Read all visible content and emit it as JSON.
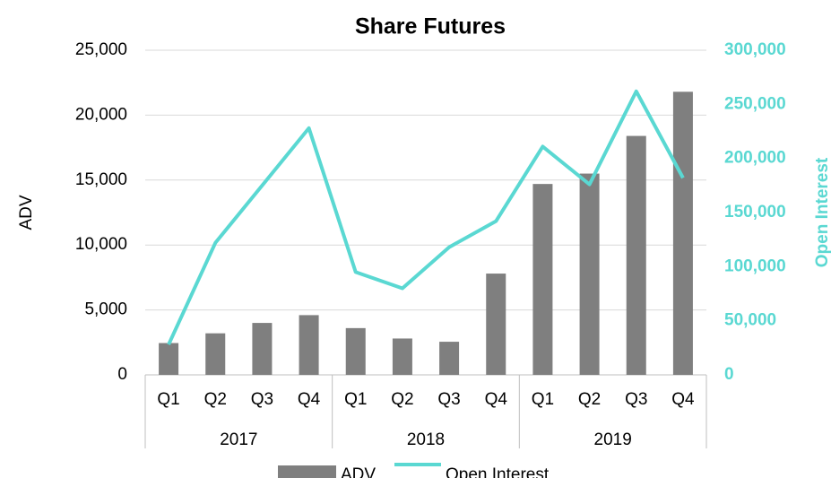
{
  "chart_data": {
    "type": "bar",
    "title": "Share Futures",
    "y_label": "ADV",
    "y2_label": "Open Interest",
    "categories": [
      "Q1",
      "Q2",
      "Q3",
      "Q4",
      "Q1",
      "Q2",
      "Q3",
      "Q4",
      "Q1",
      "Q2",
      "Q3",
      "Q4"
    ],
    "groups": [
      "2017",
      "2018",
      "2019"
    ],
    "series": [
      {
        "name": "ADV",
        "type": "bar",
        "color": "#7f7f7f",
        "values": [
          2450,
          3200,
          4000,
          4600,
          3600,
          2800,
          2550,
          7800,
          14700,
          15500,
          18400,
          21800
        ]
      },
      {
        "name": "Open Interest",
        "type": "line",
        "axis": "y2",
        "color": "#5ad8d2",
        "values": [
          28000,
          122000,
          175000,
          228000,
          95000,
          80000,
          118000,
          142000,
          211000,
          176000,
          262000,
          182000
        ]
      }
    ],
    "ylim": [
      0,
      25000
    ],
    "yticks": [
      0,
      {
        "value": 5000,
        "label": "5,000"
      },
      {
        "value": 10000,
        "label": "10,000"
      },
      {
        "value": 15000,
        "label": "15,000"
      },
      {
        "value": 20000,
        "label": "20,000"
      },
      {
        "value": 25000,
        "label": "25,000"
      }
    ],
    "y2lim": [
      0,
      300000
    ],
    "y2ticks": [
      0,
      {
        "value": 50000,
        "label": "50,000"
      },
      {
        "value": 100000,
        "label": "100,000"
      },
      {
        "value": 150000,
        "label": "150,000"
      },
      {
        "value": 200000,
        "label": "200,000"
      },
      {
        "value": 250000,
        "label": "250,000"
      },
      {
        "value": 300000,
        "label": "300,000"
      }
    ],
    "grid": true,
    "legend": "bottom"
  }
}
